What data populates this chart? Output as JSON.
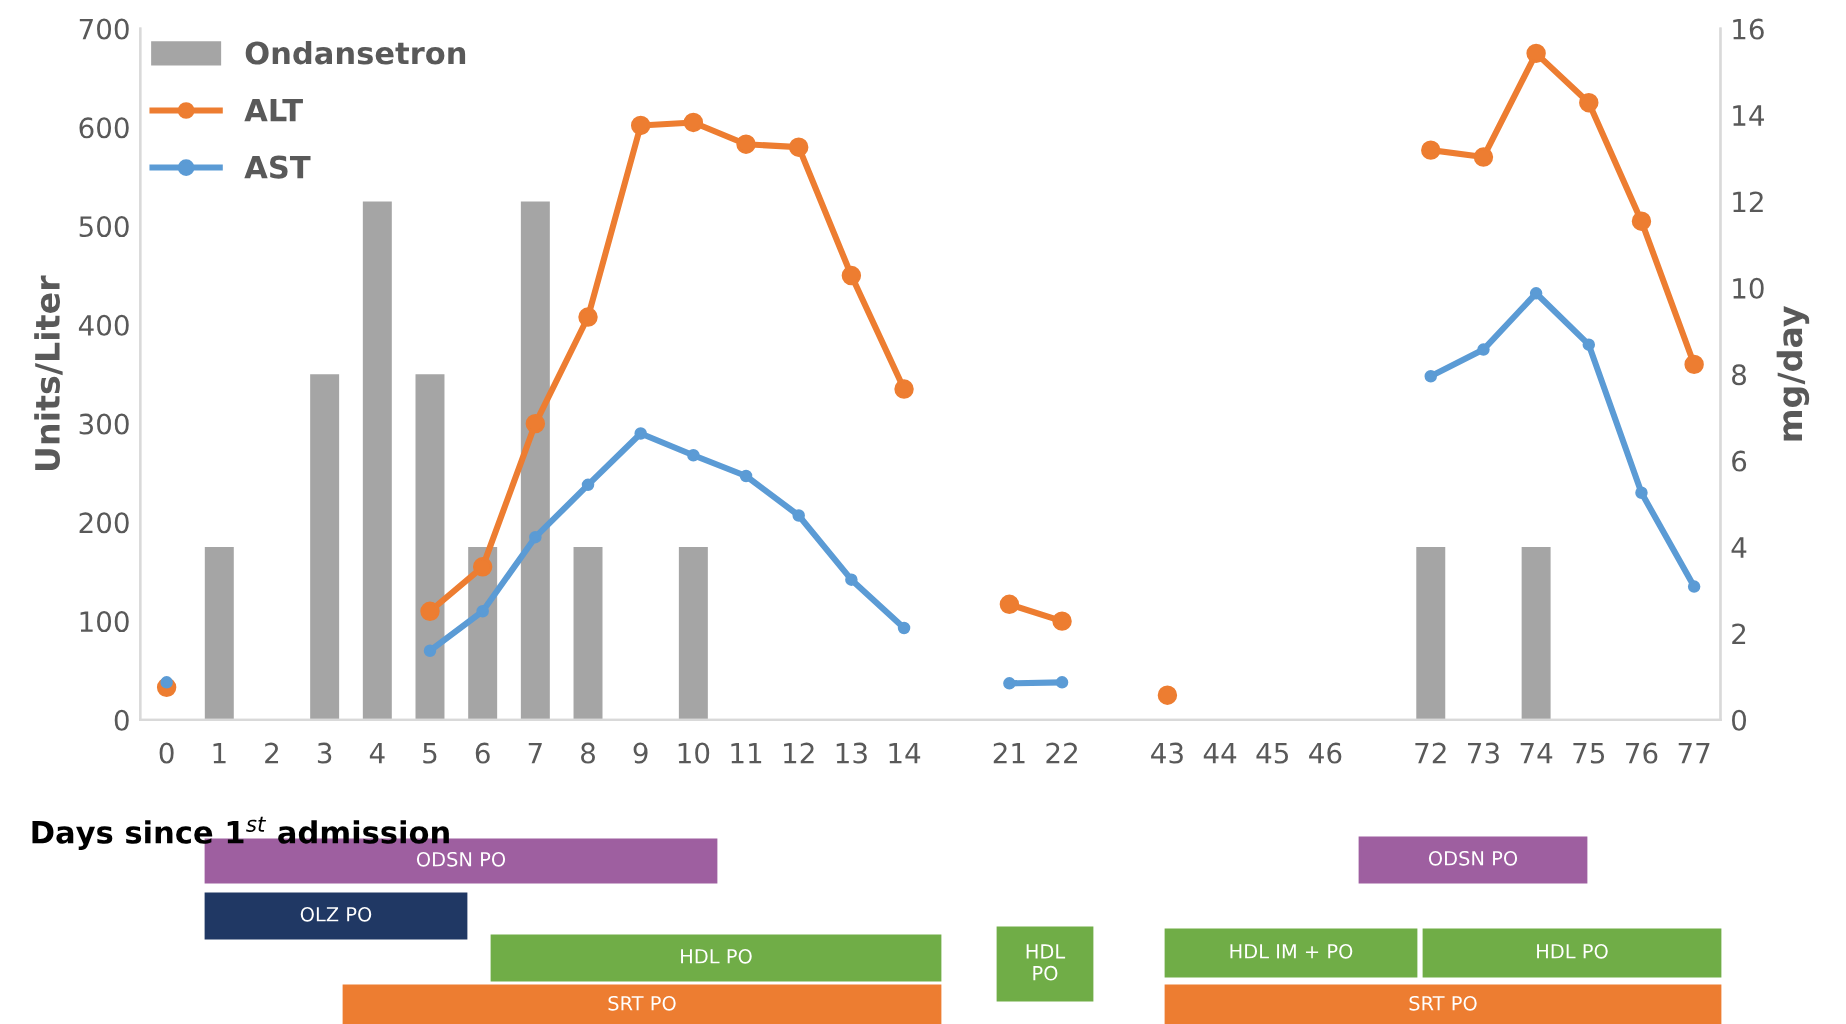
{
  "chart_data": {
    "type": "line",
    "xlabel": "Days since 1$^{st}$ admission",
    "ylabel": "Units/Liter",
    "y2label": "mg/day",
    "categories": [
      "0",
      "1",
      "2",
      "3",
      "4",
      "5",
      "6",
      "7",
      "8",
      "9",
      "10",
      "11",
      "12",
      "13",
      "14",
      null,
      "21",
      "22",
      null,
      "43",
      "44",
      "45",
      "46",
      null,
      "72",
      "73",
      "74",
      "75",
      "76",
      "77"
    ],
    "series": [
      {
        "name": "Ondansetron",
        "type": "bar",
        "axis": "y2",
        "color": "#a5a5a5",
        "values": [
          null,
          4,
          null,
          8,
          12,
          8,
          4,
          12,
          4,
          null,
          4,
          null,
          null,
          null,
          null,
          null,
          null,
          null,
          null,
          null,
          null,
          null,
          null,
          null,
          4,
          null,
          4,
          null,
          null,
          null
        ]
      },
      {
        "name": "ALT",
        "color": "#ed7d31",
        "values": [
          33,
          null,
          null,
          null,
          null,
          110,
          155,
          300,
          408,
          602,
          605,
          583,
          580,
          450,
          335,
          null,
          117,
          100,
          null,
          25,
          null,
          null,
          null,
          null,
          577,
          570,
          675,
          625,
          505,
          360
        ]
      },
      {
        "name": "AST",
        "color": "#5b9bd5",
        "values": [
          38,
          null,
          null,
          null,
          null,
          70,
          110,
          185,
          238,
          290,
          268,
          247,
          207,
          142,
          93,
          null,
          37,
          38,
          null,
          null,
          null,
          null,
          null,
          null,
          348,
          375,
          432,
          380,
          230,
          135
        ]
      }
    ],
    "ylim": [
      0,
      700
    ],
    "yticks": [
      0,
      100,
      200,
      300,
      400,
      500,
      600,
      700
    ],
    "y2lim": [
      0,
      16
    ],
    "y2ticks": [
      0,
      2,
      4,
      6,
      8,
      10,
      12,
      14,
      16
    ],
    "marker": "circle",
    "line_style": "solid",
    "legend": "top left",
    "annotations": [
      "ODSN PO",
      "OLZ PO",
      "HDL PO",
      "SRT PO",
      "HDL PO",
      "ODSN PO",
      "HDL IM + PO",
      "HDL PO",
      "SRT PO"
    ]
  }
}
